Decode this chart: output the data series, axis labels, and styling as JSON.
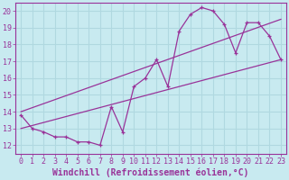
{
  "xlabel": "Windchill (Refroidissement éolien,°C)",
  "background_color": "#c8eaf0",
  "grid_color": "#b0d8e0",
  "line_color": "#993399",
  "xlim": [
    -0.5,
    23.5
  ],
  "ylim": [
    11.5,
    20.5
  ],
  "xticks": [
    0,
    1,
    2,
    3,
    4,
    5,
    6,
    7,
    8,
    9,
    10,
    11,
    12,
    13,
    14,
    15,
    16,
    17,
    18,
    19,
    20,
    21,
    22,
    23
  ],
  "yticks": [
    12,
    13,
    14,
    15,
    16,
    17,
    18,
    19,
    20
  ],
  "hours": [
    0,
    1,
    2,
    3,
    4,
    5,
    6,
    7,
    8,
    9,
    10,
    11,
    12,
    13,
    14,
    15,
    16,
    17,
    18,
    19,
    20,
    21,
    22,
    23
  ],
  "windchill": [
    13.8,
    13.0,
    12.8,
    12.5,
    12.5,
    12.2,
    12.2,
    12.0,
    14.3,
    12.8,
    15.5,
    16.0,
    17.1,
    15.5,
    18.8,
    19.8,
    20.2,
    20.0,
    19.2,
    17.5,
    19.3,
    19.3,
    18.5,
    17.1
  ],
  "trend1_x": [
    0,
    23
  ],
  "trend1_y": [
    13.0,
    17.1
  ],
  "trend2_x": [
    0,
    23
  ],
  "trend2_y": [
    14.0,
    19.5
  ],
  "font_color": "#993399",
  "tick_fontsize": 6,
  "label_fontsize": 7
}
